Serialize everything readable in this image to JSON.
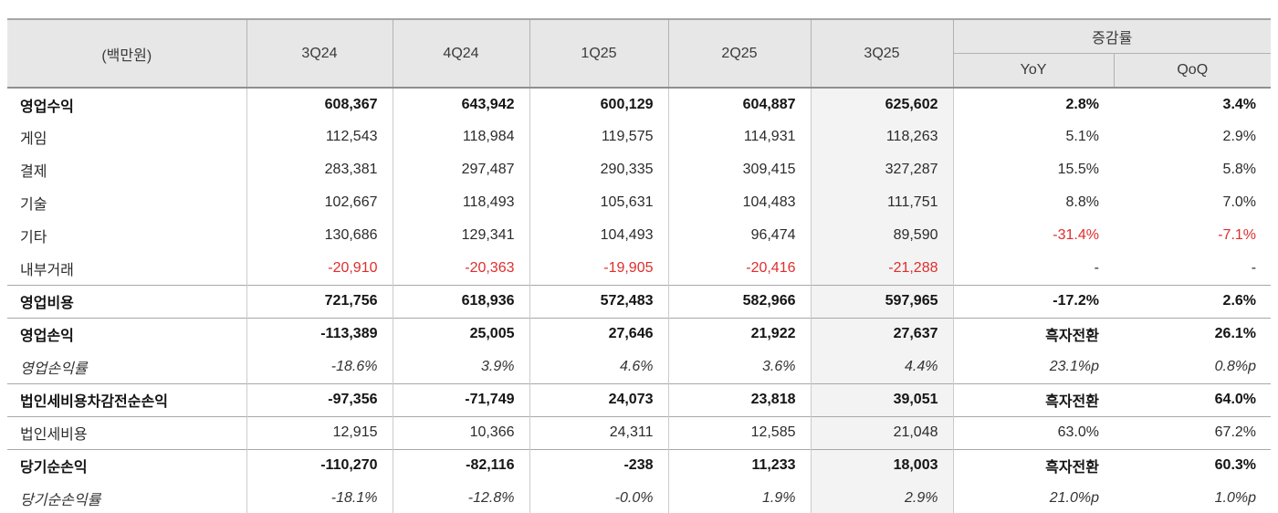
{
  "table": {
    "unit_label": "(백만원)",
    "quarters": [
      "3Q24",
      "4Q24",
      "1Q25",
      "2Q25",
      "3Q25"
    ],
    "highlight_column": "3Q25",
    "change_group_label": "증감률",
    "change_cols": [
      "YoY",
      "QoQ"
    ],
    "rows": [
      {
        "label": "영업수익",
        "style": "section",
        "topline": false,
        "values": [
          "608,367",
          "643,942",
          "600,129",
          "604,887",
          "625,602",
          "2.8%",
          "3.4%"
        ]
      },
      {
        "label": "게임",
        "style": "sub",
        "topline": false,
        "values": [
          "112,543",
          "118,984",
          "119,575",
          "114,931",
          "118,263",
          "5.1%",
          "2.9%"
        ]
      },
      {
        "label": "결제",
        "style": "sub",
        "topline": false,
        "values": [
          "283,381",
          "297,487",
          "290,335",
          "309,415",
          "327,287",
          "15.5%",
          "5.8%"
        ]
      },
      {
        "label": "기술",
        "style": "sub",
        "topline": false,
        "values": [
          "102,667",
          "118,493",
          "105,631",
          "104,483",
          "111,751",
          "8.8%",
          "7.0%"
        ]
      },
      {
        "label": "기타",
        "style": "sub",
        "topline": false,
        "values": [
          "130,686",
          "129,341",
          "104,493",
          "96,474",
          "89,590",
          "-31.4%",
          "-7.1%"
        ]
      },
      {
        "label": "내부거래",
        "style": "sub",
        "topline": false,
        "values": [
          "-20,910",
          "-20,363",
          "-19,905",
          "-20,416",
          "-21,288",
          "-",
          "-"
        ]
      },
      {
        "label": "영업비용",
        "style": "section",
        "topline": true,
        "values": [
          "721,756",
          "618,936",
          "572,483",
          "582,966",
          "597,965",
          "-17.2%",
          "2.6%"
        ]
      },
      {
        "label": "영업손익",
        "style": "section",
        "topline": true,
        "values": [
          "-113,389",
          "25,005",
          "27,646",
          "21,922",
          "27,637",
          "흑자전환",
          "26.1%"
        ]
      },
      {
        "label": "영업손익률",
        "style": "ratio",
        "topline": false,
        "values": [
          "-18.6%",
          "3.9%",
          "4.6%",
          "3.6%",
          "4.4%",
          "23.1%p",
          "0.8%p"
        ]
      },
      {
        "label": "법인세비용차감전순손익",
        "style": "section",
        "topline": true,
        "values": [
          "-97,356",
          "-71,749",
          "24,073",
          "23,818",
          "39,051",
          "흑자전환",
          "64.0%"
        ]
      },
      {
        "label": "법인세비용",
        "style": "sub",
        "topline": true,
        "values": [
          "12,915",
          "10,366",
          "24,311",
          "12,585",
          "21,048",
          "63.0%",
          "67.2%"
        ]
      },
      {
        "label": "당기순손익",
        "style": "section",
        "topline": true,
        "values": [
          "-110,270",
          "-82,116",
          "-238",
          "11,233",
          "18,003",
          "흑자전환",
          "60.3%"
        ]
      },
      {
        "label": "당기순손익률",
        "style": "ratio",
        "topline": false,
        "values": [
          "-18.1%",
          "-12.8%",
          "-0.0%",
          "1.9%",
          "2.9%",
          "21.0%p",
          "1.0%p"
        ]
      }
    ],
    "colors": {
      "header_bg": "#e7e7e7",
      "highlight_bg": "#f3f3f3",
      "negative_red": "#e02d2d"
    }
  }
}
